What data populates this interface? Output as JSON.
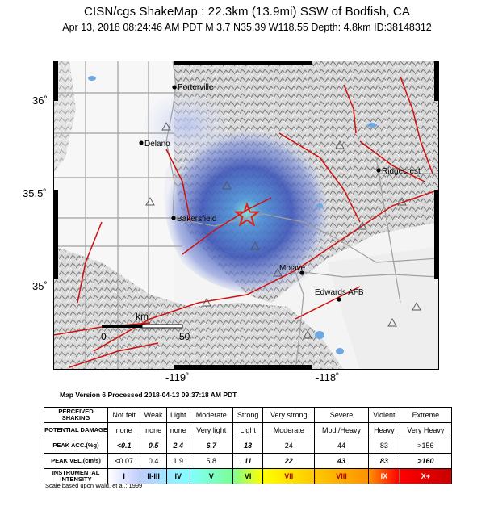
{
  "header": {
    "title": "CISN/cgs ShakeMap : 22.3km (13.9mi) SSW of Bodfish, CA",
    "subtitle": "Apr 13, 2018 08:24:46 AM PDT   M 3.7   N35.39 W118.55   Depth: 4.8km   ID:38148312"
  },
  "map": {
    "lat_labels": [
      "36˚",
      "35.5˚",
      "35˚"
    ],
    "lon_labels": [
      "-119˚",
      "-118˚"
    ],
    "cities": [
      {
        "name": "Porterville"
      },
      {
        "name": "Delano"
      },
      {
        "name": "Bakersfield"
      },
      {
        "name": "Ridgecrest"
      },
      {
        "name": "Mojave"
      },
      {
        "name": "Edwards AFB"
      }
    ],
    "scale": {
      "unit": "km",
      "start": "0",
      "end": "50"
    },
    "epicenter_icon": "star-icon",
    "colors": {
      "fault": "#d01010",
      "road": "#a0a0a0",
      "water": "#6fa8e0",
      "star": "#e02020"
    }
  },
  "version_text": "Map Version 6 Processed 2018-04-13 09:37:18 AM PDT",
  "legend": {
    "rows": [
      {
        "head": "PERCEIVED SHAKING",
        "cells": [
          "Not felt",
          "Weak",
          "Light",
          "Moderate",
          "Strong",
          "Very strong",
          "Severe",
          "Violent",
          "Extreme"
        ]
      },
      {
        "head": "POTENTIAL DAMAGE",
        "cells": [
          "none",
          "none",
          "none",
          "Very light",
          "Light",
          "Moderate",
          "Mod./Heavy",
          "Heavy",
          "Very Heavy"
        ]
      },
      {
        "head": "PEAK ACC.(%g)",
        "cells": [
          "<0.1",
          "0.5",
          "2.4",
          "6.7",
          "13",
          "24",
          "44",
          "83",
          ">156"
        ]
      },
      {
        "head": "PEAK VEL.(cm/s)",
        "cells": [
          "<0.07",
          "0.4",
          "1.9",
          "5.8",
          "11",
          "22",
          "43",
          "83",
          ">160"
        ]
      },
      {
        "head": "INSTRUMENTAL INTENSITY",
        "cells": [
          "I",
          "II-III",
          "IV",
          "V",
          "VI",
          "VII",
          "VIII",
          "IX",
          "X+"
        ]
      }
    ],
    "intensity_colors": [
      "#ffffff",
      "#bfccff",
      "#a0e6ff",
      "#80ffff",
      "#7aff93",
      "#ffff00",
      "#ffc800",
      "#ff9100",
      "#ff0000",
      "#c80000"
    ]
  },
  "footnote": "Scale based upon Wald, et al.; 1999"
}
